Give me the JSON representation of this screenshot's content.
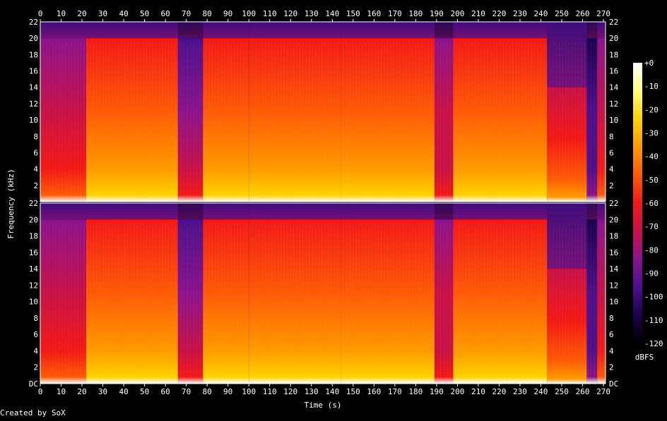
{
  "chart_data": {
    "type": "heatmap",
    "title": "",
    "xlabel": "Time (s)",
    "ylabel": "Frequency (kHz)",
    "credit": "Created by SoX",
    "colorbar_label": "dBFS",
    "x_ticks": [
      0,
      10,
      20,
      30,
      40,
      50,
      60,
      70,
      80,
      90,
      100,
      110,
      120,
      130,
      140,
      150,
      160,
      170,
      180,
      190,
      200,
      210,
      220,
      230,
      240,
      250,
      260,
      270
    ],
    "y_ticks": [
      {
        "value": 0,
        "label": "DC"
      },
      {
        "value": 2,
        "label": "2"
      },
      {
        "value": 4,
        "label": "4"
      },
      {
        "value": 6,
        "label": "6"
      },
      {
        "value": 8,
        "label": "8"
      },
      {
        "value": 10,
        "label": "10"
      },
      {
        "value": 12,
        "label": "12"
      },
      {
        "value": 14,
        "label": "14"
      },
      {
        "value": 16,
        "label": "16"
      },
      {
        "value": 18,
        "label": "18"
      },
      {
        "value": 20,
        "label": "20"
      },
      {
        "value": 22,
        "label": "22"
      }
    ],
    "top_y_ticks": [
      2,
      4,
      6,
      8,
      10,
      12,
      14,
      16,
      18,
      20,
      22
    ],
    "colorbar_ticks": [
      {
        "value": 0,
        "label": "+0"
      },
      {
        "value": -10,
        "label": "-10"
      },
      {
        "value": -20,
        "label": "-20"
      },
      {
        "value": -30,
        "label": "-30"
      },
      {
        "value": -40,
        "label": "-40"
      },
      {
        "value": -50,
        "label": "-50"
      },
      {
        "value": -60,
        "label": "-60"
      },
      {
        "value": -70,
        "label": "-70"
      },
      {
        "value": -80,
        "label": "-80"
      },
      {
        "value": -90,
        "label": "-90"
      },
      {
        "value": -100,
        "label": "-100"
      },
      {
        "value": -110,
        "label": "-110"
      },
      {
        "value": -120,
        "label": "-120"
      }
    ],
    "xlim": [
      0,
      271
    ],
    "ylim": [
      0,
      22
    ],
    "clim": [
      -120,
      0
    ],
    "channels": 2,
    "segments": [
      {
        "t0": 0,
        "t1": 22,
        "cutoff_khz": 20.0,
        "level": 0.55
      },
      {
        "t0": 22,
        "t1": 66,
        "cutoff_khz": 20.0,
        "level": 0.85
      },
      {
        "t0": 66,
        "t1": 78,
        "cutoff_khz": 20.0,
        "level": 0.45
      },
      {
        "t0": 78,
        "t1": 100,
        "cutoff_khz": 20.0,
        "level": 0.88
      },
      {
        "t0": 100,
        "t1": 144,
        "cutoff_khz": 20.0,
        "level": 0.82
      },
      {
        "t0": 144,
        "t1": 189,
        "cutoff_khz": 20.0,
        "level": 0.86
      },
      {
        "t0": 189,
        "t1": 198,
        "cutoff_khz": 20.0,
        "level": 0.5
      },
      {
        "t0": 198,
        "t1": 243,
        "cutoff_khz": 20.0,
        "level": 0.84
      },
      {
        "t0": 243,
        "t1": 262,
        "cutoff_khz": 14.0,
        "level": 0.7
      },
      {
        "t0": 262,
        "t1": 267,
        "cutoff_khz": 20.0,
        "level": 0.25
      },
      {
        "t0": 267,
        "t1": 271,
        "cutoff_khz": 20.0,
        "level": 0.6
      }
    ],
    "colormap": [
      "#000000",
      "#1a0050",
      "#4a1090",
      "#8a1290",
      "#c8104a",
      "#f21818",
      "#ff5a08",
      "#ff9a00",
      "#ffd200",
      "#ffff80",
      "#ffffff"
    ]
  }
}
